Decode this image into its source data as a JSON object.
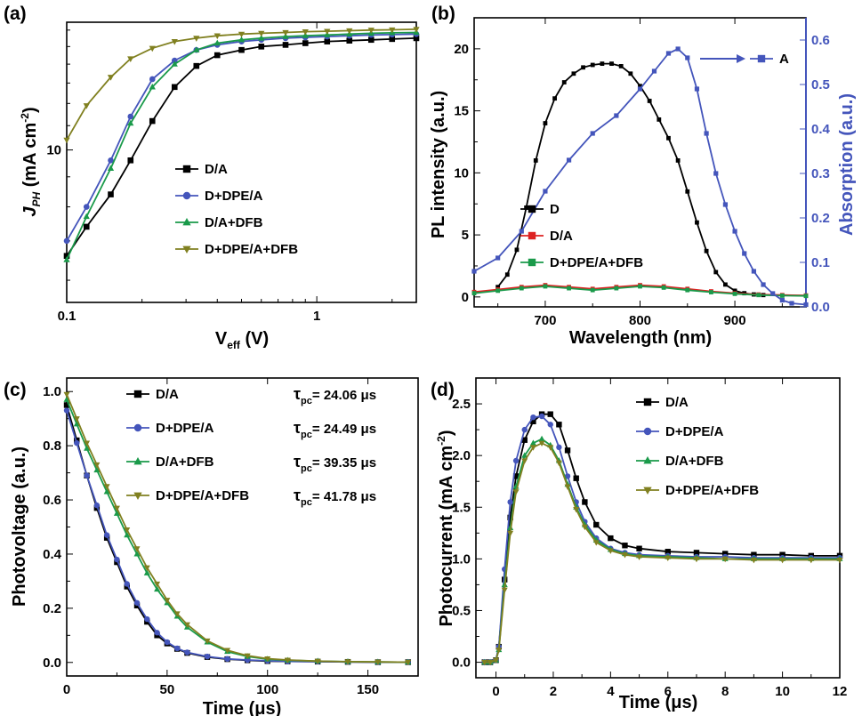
{
  "chart_data": [
    {
      "panel": "(a)",
      "type": "line",
      "xscale": "log",
      "yscale": "log",
      "xlabel": "V",
      "xlabel_sub": "eff",
      "xlabel_unit": " (V)",
      "ylabel": "J",
      "ylabel_sub": "PH",
      "ylabel_unit": " (mA cm",
      "ylabel_sup": "-2",
      "ylabel_close": ")",
      "xlim": [
        0.1,
        2.5
      ],
      "ylim": [
        5.5,
        16.5
      ],
      "xticks": [
        {
          "v": 0.1,
          "t": "0.1"
        },
        {
          "v": 1,
          "t": "1"
        }
      ],
      "yticks": [
        {
          "v": 10,
          "t": "10"
        }
      ],
      "legend": "center",
      "series": [
        {
          "name": "D/A",
          "color": "#000000",
          "marker": "square",
          "x": [
            0.1,
            0.12,
            0.15,
            0.18,
            0.22,
            0.27,
            0.33,
            0.4,
            0.5,
            0.6,
            0.75,
            0.9,
            1.1,
            1.35,
            1.65,
            2.0,
            2.5
          ],
          "y": [
            6.6,
            7.4,
            8.4,
            9.6,
            11.2,
            12.8,
            13.9,
            14.5,
            14.8,
            15.0,
            15.1,
            15.2,
            15.3,
            15.35,
            15.4,
            15.45,
            15.5
          ]
        },
        {
          "name": "D+DPE/A",
          "color": "#4455bb",
          "marker": "circle",
          "x": [
            0.1,
            0.12,
            0.15,
            0.18,
            0.22,
            0.27,
            0.33,
            0.4,
            0.5,
            0.6,
            0.75,
            0.9,
            1.1,
            1.35,
            1.65,
            2.0,
            2.5
          ],
          "y": [
            7.0,
            8.0,
            9.6,
            11.4,
            13.2,
            14.2,
            14.8,
            15.1,
            15.3,
            15.4,
            15.5,
            15.55,
            15.6,
            15.65,
            15.7,
            15.72,
            15.75
          ]
        },
        {
          "name": "D/A+DFB",
          "color": "#1a9a4a",
          "marker": "triangle",
          "x": [
            0.1,
            0.12,
            0.15,
            0.18,
            0.22,
            0.27,
            0.33,
            0.4,
            0.5,
            0.6,
            0.75,
            0.9,
            1.1,
            1.35,
            1.65,
            2.0,
            2.5
          ],
          "y": [
            6.5,
            7.7,
            9.3,
            11.1,
            12.8,
            14.0,
            14.8,
            15.2,
            15.4,
            15.5,
            15.6,
            15.65,
            15.7,
            15.75,
            15.8,
            15.83,
            15.85
          ]
        },
        {
          "name": "D+DPE/A+DFB",
          "color": "#808020",
          "marker": "triangle-down",
          "x": [
            0.1,
            0.12,
            0.15,
            0.18,
            0.22,
            0.27,
            0.33,
            0.4,
            0.5,
            0.6,
            0.75,
            0.9,
            1.1,
            1.35,
            1.65,
            2.0,
            2.5
          ],
          "y": [
            10.4,
            11.9,
            13.3,
            14.3,
            14.9,
            15.3,
            15.5,
            15.65,
            15.75,
            15.8,
            15.85,
            15.9,
            15.93,
            15.96,
            16.0,
            16.02,
            16.05
          ]
        }
      ]
    },
    {
      "panel": "(b)",
      "type": "line",
      "xlabel": "Wavelength (nm)",
      "ylabel": "PL intensity (a.u.)",
      "y2label": "Absorption (a.u.)",
      "xlim": [
        625,
        975
      ],
      "ylim": [
        -0.8,
        22.5
      ],
      "y2lim": [
        0,
        0.65
      ],
      "xticks": [
        700,
        800,
        900
      ],
      "yticks": [
        0,
        5,
        10,
        15,
        20
      ],
      "y2ticks": [
        "0.0",
        "0.1",
        "0.2",
        "0.3",
        "0.4",
        "0.5",
        "0.6"
      ],
      "y2_color": "#4455bb",
      "legend": "lower-center",
      "series": [
        {
          "name": "D",
          "color": "#000000",
          "marker": "square",
          "axis": "left",
          "x": [
            650,
            660,
            670,
            680,
            690,
            700,
            710,
            720,
            730,
            740,
            750,
            760,
            770,
            780,
            790,
            800,
            810,
            820,
            830,
            840,
            850,
            860,
            870,
            880,
            890,
            900,
            910,
            920,
            930
          ],
          "y": [
            0.8,
            1.8,
            3.8,
            7.2,
            11.0,
            14.0,
            16.0,
            17.3,
            18.0,
            18.5,
            18.7,
            18.8,
            18.8,
            18.6,
            18.0,
            17.0,
            15.8,
            14.3,
            12.8,
            11.0,
            8.5,
            6.0,
            3.7,
            2.0,
            1.0,
            0.5,
            0.3,
            0.2,
            0.15
          ]
        },
        {
          "name": "D/A",
          "color": "#dd2222",
          "marker": "square",
          "axis": "left",
          "x": [
            625,
            650,
            675,
            700,
            725,
            750,
            775,
            800,
            825,
            850,
            875,
            900,
            925,
            950,
            975
          ],
          "y": [
            0.4,
            0.6,
            0.8,
            0.95,
            0.8,
            0.65,
            0.8,
            0.95,
            0.85,
            0.65,
            0.45,
            0.3,
            0.2,
            0.15,
            0.12
          ]
        },
        {
          "name": "D+DPE/A+DFB",
          "color": "#1a9a4a",
          "marker": "square",
          "axis": "left",
          "x": [
            625,
            650,
            675,
            700,
            725,
            750,
            775,
            800,
            825,
            850,
            875,
            900,
            925,
            950,
            975
          ],
          "y": [
            0.3,
            0.5,
            0.7,
            0.85,
            0.7,
            0.55,
            0.7,
            0.85,
            0.75,
            0.55,
            0.38,
            0.25,
            0.15,
            0.1,
            0.08
          ]
        },
        {
          "name": "A",
          "color": "#4455bb",
          "marker": "square",
          "axis": "right",
          "x": [
            625,
            650,
            675,
            700,
            725,
            750,
            775,
            800,
            815,
            830,
            840,
            850,
            860,
            870,
            880,
            890,
            900,
            910,
            920,
            930,
            940,
            950,
            960,
            975
          ],
          "y": [
            0.08,
            0.11,
            0.17,
            0.26,
            0.33,
            0.39,
            0.43,
            0.49,
            0.53,
            0.57,
            0.58,
            0.56,
            0.49,
            0.39,
            0.3,
            0.23,
            0.17,
            0.12,
            0.08,
            0.05,
            0.03,
            0.015,
            0.008,
            0.005
          ]
        }
      ]
    },
    {
      "panel": "(c)",
      "type": "line",
      "xlabel": "Time (μs)",
      "ylabel": "Photovoltage (a.u.)",
      "xlim": [
        0,
        175
      ],
      "ylim": [
        -0.05,
        1.05
      ],
      "xticks": [
        0,
        50,
        100,
        150
      ],
      "yticks": [
        "0.0",
        "0.2",
        "0.4",
        "0.6",
        "0.8",
        "1.0"
      ],
      "legend": "top-right",
      "tau_prefix": "τ",
      "tau_sub": "pc",
      "series": [
        {
          "name": "D/A",
          "color": "#000000",
          "marker": "square",
          "tau": "= 24.06 μs",
          "x": [
            0,
            5,
            10,
            15,
            20,
            25,
            30,
            35,
            40,
            45,
            50,
            55,
            60,
            70,
            80,
            90,
            100,
            110,
            125,
            140,
            155,
            170
          ],
          "y": [
            0.95,
            0.82,
            0.69,
            0.57,
            0.46,
            0.37,
            0.28,
            0.21,
            0.15,
            0.1,
            0.07,
            0.05,
            0.035,
            0.02,
            0.012,
            0.008,
            0.005,
            0.004,
            0.003,
            0.002,
            0.001,
            0.001
          ]
        },
        {
          "name": "D+DPE/A",
          "color": "#4455bb",
          "marker": "circle",
          "tau": "= 24.49 μs",
          "x": [
            0,
            5,
            10,
            15,
            20,
            25,
            30,
            35,
            40,
            45,
            50,
            55,
            60,
            70,
            80,
            90,
            100,
            110,
            125,
            140,
            155,
            170
          ],
          "y": [
            0.93,
            0.81,
            0.69,
            0.58,
            0.47,
            0.38,
            0.29,
            0.22,
            0.16,
            0.11,
            0.075,
            0.052,
            0.037,
            0.022,
            0.013,
            0.009,
            0.006,
            0.004,
            0.003,
            0.002,
            0.001,
            0.001
          ]
        },
        {
          "name": "D/A+DFB",
          "color": "#1a9a4a",
          "marker": "triangle",
          "tau": "= 39.35 μs",
          "x": [
            0,
            5,
            10,
            15,
            20,
            25,
            30,
            35,
            40,
            45,
            50,
            55,
            60,
            70,
            80,
            90,
            100,
            110,
            125,
            140,
            155,
            170
          ],
          "y": [
            0.97,
            0.88,
            0.79,
            0.71,
            0.63,
            0.55,
            0.47,
            0.4,
            0.33,
            0.27,
            0.22,
            0.17,
            0.13,
            0.075,
            0.04,
            0.022,
            0.012,
            0.008,
            0.005,
            0.003,
            0.002,
            0.001
          ]
        },
        {
          "name": "D+DPE/A+DFB",
          "color": "#808020",
          "marker": "triangle-down",
          "tau": "= 41.78 μs",
          "x": [
            0,
            5,
            10,
            15,
            20,
            25,
            30,
            35,
            40,
            45,
            50,
            55,
            60,
            70,
            80,
            90,
            100,
            110,
            125,
            140,
            155,
            170
          ],
          "y": [
            0.99,
            0.9,
            0.81,
            0.73,
            0.65,
            0.57,
            0.49,
            0.42,
            0.35,
            0.29,
            0.23,
            0.18,
            0.14,
            0.08,
            0.045,
            0.025,
            0.014,
            0.009,
            0.005,
            0.003,
            0.002,
            0.001
          ]
        }
      ]
    },
    {
      "panel": "(d)",
      "type": "line",
      "xlabel": "Time (μs)",
      "ylabel": "Photocurrent (mA cm",
      "ylabel_sup": "-2",
      "ylabel_close": ")",
      "xlim": [
        -0.7,
        12
      ],
      "ylim": [
        -0.15,
        2.75
      ],
      "xticks": [
        0,
        2,
        4,
        6,
        8,
        10,
        12
      ],
      "yticks": [
        "0.0",
        "0.5",
        "1.0",
        "1.5",
        "2.0",
        "2.5"
      ],
      "legend": "top-right",
      "series": [
        {
          "name": "D/A",
          "color": "#000000",
          "marker": "square",
          "x": [
            -0.4,
            -0.2,
            0,
            0.1,
            0.3,
            0.5,
            0.7,
            1.0,
            1.3,
            1.6,
            1.9,
            2.2,
            2.5,
            2.8,
            3.1,
            3.5,
            4.0,
            4.5,
            5,
            6,
            7,
            8,
            9,
            10,
            11,
            12
          ],
          "y": [
            0,
            0,
            0.02,
            0.15,
            0.8,
            1.4,
            1.8,
            2.15,
            2.33,
            2.4,
            2.4,
            2.3,
            2.05,
            1.78,
            1.55,
            1.33,
            1.2,
            1.13,
            1.1,
            1.07,
            1.06,
            1.05,
            1.04,
            1.04,
            1.03,
            1.03
          ]
        },
        {
          "name": "D+DPE/A",
          "color": "#4455bb",
          "marker": "circle",
          "x": [
            -0.4,
            -0.2,
            0,
            0.1,
            0.3,
            0.5,
            0.7,
            1.0,
            1.3,
            1.6,
            1.9,
            2.2,
            2.5,
            2.8,
            3.1,
            3.5,
            4.0,
            4.5,
            5,
            6,
            7,
            8,
            9,
            10,
            11,
            12
          ],
          "y": [
            0,
            0,
            0.02,
            0.15,
            0.9,
            1.55,
            1.95,
            2.25,
            2.37,
            2.38,
            2.3,
            2.08,
            1.8,
            1.55,
            1.36,
            1.2,
            1.1,
            1.06,
            1.04,
            1.03,
            1.02,
            1.02,
            1.01,
            1.01,
            1.01,
            1.01
          ]
        },
        {
          "name": "D/A+DFB",
          "color": "#1a9a4a",
          "marker": "triangle",
          "x": [
            -0.4,
            -0.2,
            0,
            0.1,
            0.3,
            0.5,
            0.7,
            1.0,
            1.3,
            1.6,
            1.9,
            2.2,
            2.5,
            2.8,
            3.1,
            3.5,
            4.0,
            4.5,
            5,
            6,
            7,
            8,
            9,
            10,
            11,
            12
          ],
          "y": [
            0,
            0,
            0.02,
            0.12,
            0.75,
            1.3,
            1.7,
            2.0,
            2.12,
            2.16,
            2.1,
            1.95,
            1.72,
            1.5,
            1.33,
            1.18,
            1.09,
            1.05,
            1.03,
            1.02,
            1.01,
            1.0,
            1.0,
            1.0,
            1.0,
            1.0
          ]
        },
        {
          "name": "D+DPE/A+DFB",
          "color": "#808020",
          "marker": "triangle-down",
          "x": [
            -0.4,
            -0.2,
            0,
            0.1,
            0.3,
            0.5,
            0.7,
            1.0,
            1.3,
            1.6,
            1.9,
            2.2,
            2.5,
            2.8,
            3.1,
            3.5,
            4.0,
            4.5,
            5,
            6,
            7,
            8,
            9,
            10,
            11,
            12
          ],
          "y": [
            0,
            0,
            0.02,
            0.12,
            0.7,
            1.25,
            1.65,
            1.95,
            2.08,
            2.12,
            2.08,
            1.93,
            1.7,
            1.48,
            1.31,
            1.16,
            1.08,
            1.04,
            1.02,
            1.01,
            1.0,
            1.0,
            0.99,
            0.99,
            0.99,
            0.99
          ]
        }
      ]
    }
  ]
}
